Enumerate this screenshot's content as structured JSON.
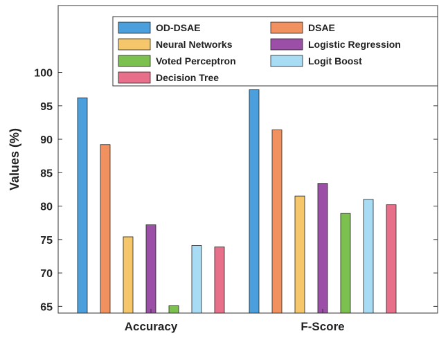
{
  "chart_data": {
    "type": "bar",
    "title": "",
    "xlabel": "",
    "ylabel": "Values (%)",
    "categories": [
      "Accuracy",
      "F-Score"
    ],
    "ylim": [
      64,
      110
    ],
    "yticks": [
      65,
      70,
      75,
      80,
      85,
      90,
      95,
      100
    ],
    "grid": false,
    "legend_position": "top",
    "series": [
      {
        "name": "OD-DSAE",
        "color": "#4a9fdc",
        "values": [
          96.2,
          97.4
        ]
      },
      {
        "name": "DSAE",
        "color": "#f0915f",
        "values": [
          89.2,
          91.4
        ]
      },
      {
        "name": "Neural Networks",
        "color": "#f5c76a",
        "values": [
          75.4,
          81.5
        ]
      },
      {
        "name": "Logistic Regression",
        "color": "#9b4fa6",
        "values": [
          77.2,
          83.4
        ]
      },
      {
        "name": "Voted Perceptron",
        "color": "#7cc04f",
        "values": [
          65.1,
          78.9
        ]
      },
      {
        "name": "Logit Boost",
        "color": "#a8dcf5",
        "values": [
          74.1,
          81.0
        ]
      },
      {
        "name": "Decision Tree",
        "color": "#e86f8a",
        "values": [
          73.9,
          80.2
        ]
      }
    ]
  }
}
